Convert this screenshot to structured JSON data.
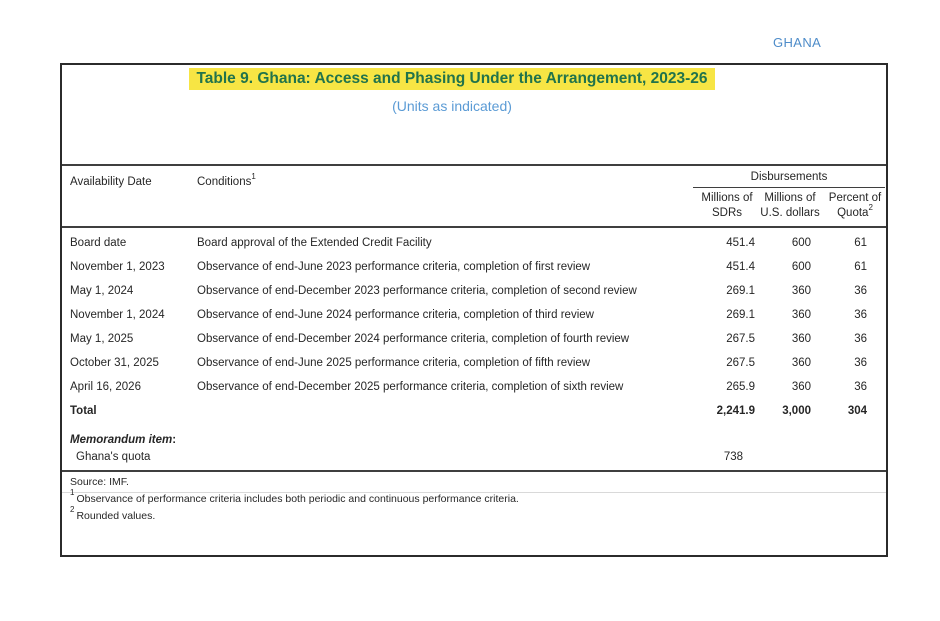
{
  "page": {
    "country_label": "GHANA"
  },
  "table": {
    "title": "Table 9. Ghana: Access and Phasing Under the Arrangement, 2023-26",
    "subtitle": "(Units as indicated)",
    "header": {
      "col_date": "Availability Date",
      "col_conditions": "Conditions",
      "col_conditions_sup": "1",
      "group": "Disbursements",
      "col_sdr_line1": "Millions of",
      "col_sdr_line2": "SDRs",
      "col_usd_line1": "Millions of",
      "col_usd_line2": "U.S. dollars",
      "col_quota_line1": "Percent of",
      "col_quota_line2": "Quota",
      "col_quota_sup": "2"
    },
    "rows": [
      {
        "date": "Board date",
        "condition": "Board approval of the Extended Credit Facility",
        "sdr": "451.4",
        "usd": "600",
        "quota": "61",
        "bold": false
      },
      {
        "date": "November 1, 2023",
        "condition": "Observance of end-June 2023 performance criteria, completion of first review",
        "sdr": "451.4",
        "usd": "600",
        "quota": "61",
        "bold": false
      },
      {
        "date": "May 1, 2024",
        "condition": "Observance of end-December 2023 performance criteria, completion of second review",
        "sdr": "269.1",
        "usd": "360",
        "quota": "36",
        "bold": false
      },
      {
        "date": "November 1, 2024",
        "condition": "Observance of end-June 2024 performance criteria, completion of third review",
        "sdr": "269.1",
        "usd": "360",
        "quota": "36",
        "bold": false
      },
      {
        "date": "May 1, 2025",
        "condition": "Observance of end-December 2024 performance criteria, completion of fourth review",
        "sdr": "267.5",
        "usd": "360",
        "quota": "36",
        "bold": false
      },
      {
        "date": "October 31, 2025",
        "condition": "Observance of end-June 2025 performance criteria, completion of fifth review",
        "sdr": "267.5",
        "usd": "360",
        "quota": "36",
        "bold": false
      },
      {
        "date": "April 16, 2026",
        "condition": "Observance of end-December 2025 performance criteria, completion of sixth review",
        "sdr": "265.9",
        "usd": "360",
        "quota": "36",
        "bold": false
      },
      {
        "date": "Total",
        "condition": "",
        "sdr": "2,241.9",
        "usd": "3,000",
        "quota": "304",
        "bold": true
      }
    ],
    "memorandum": {
      "heading": "Memorandum item",
      "heading_colon": ":",
      "item": "Ghana's quota",
      "value": "738"
    },
    "footnotes": {
      "source": "Source: IMF.",
      "note1_sup": "1",
      "note1": "Observance of performance criteria includes both periodic and continuous performance criteria.",
      "note2_sup": "2",
      "note2": "Rounded values."
    }
  },
  "colors": {
    "title_green": "#21734b",
    "highlight_yellow": "#f7e544",
    "subtitle_blue": "#5b9bd5",
    "ghana_blue": "#4e8cc9"
  }
}
